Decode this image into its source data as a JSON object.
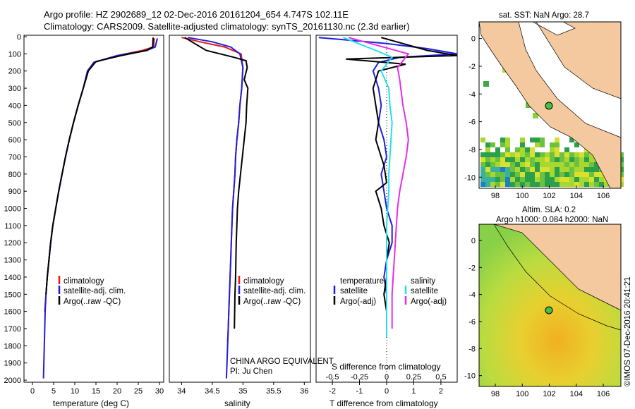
{
  "header": {
    "line1": "Argo profile: HZ 2902689_12 02-Dec-2016 20161204_654 4.747S 102.11E",
    "line2": "Climatology: CARS2009. Satellite-adjusted climatology: synTS_20161130.nc (2.3d earlier)"
  },
  "colors": {
    "climatology": "#e41a1c",
    "satellite": "#1f1fdc",
    "argo": "#000000",
    "sal_satellite": "#22e0e8",
    "sal_argo": "#e62ee6"
  },
  "panels": {
    "temp": {
      "xlabel": "temperature (deg C)",
      "xticks": [
        "0",
        "5",
        "10",
        "15",
        "20",
        "25",
        "30"
      ]
    },
    "sal": {
      "xlabel": "salinity",
      "xticks": [
        "34",
        "34.5",
        "35",
        "35.5",
        "36"
      ],
      "note1": "CHINA ARGO EQUIVALENT",
      "note2": "PI: Ju Chen"
    },
    "diff": {
      "xlabel_bottom": "T difference from climatology",
      "xlabel_top": "S difference from climatology",
      "xticks_bottom": [
        "-2",
        "-1",
        "0",
        "1",
        "2"
      ],
      "xticks_top": [
        "-0.5",
        "-0.25",
        "0",
        "0.25",
        "0.5"
      ],
      "leg_temp_title": "temperature",
      "leg_sal_title": "salinity",
      "leg_satellite": "satellite",
      "leg_argo": "Argo(-adj)"
    },
    "depth_ticks": [
      "0",
      "100",
      "200",
      "300",
      "400",
      "500",
      "600",
      "700",
      "800",
      "900",
      "1000",
      "1100",
      "1200",
      "1300",
      "1400",
      "1500",
      "1600",
      "1700",
      "1800",
      "1900",
      "2000"
    ]
  },
  "legend": {
    "climatology": "climatology",
    "satellite": "satellite-adj. clim.",
    "argo": "Argo(..raw -QC)"
  },
  "maps": {
    "sst_title": "sat. SST: NaN Argo: 28.7",
    "sla_title1": "Altim. SLA: 0.2",
    "sla_title2": "Argo h1000: 0.084 h2000: NaN",
    "lon_ticks": [
      "98",
      "100",
      "102",
      "104",
      "106"
    ],
    "lat_ticks": [
      "0",
      "-2",
      "-4",
      "-6",
      "-8",
      "-10"
    ]
  },
  "watermark": "©IMOS 07-Dec-2016 20:41:21",
  "chart_data": [
    {
      "type": "line",
      "title": "",
      "xlabel": "temperature (deg C)",
      "ylabel": "",
      "xlim": [
        -2,
        31
      ],
      "ylim": [
        2000,
        0
      ],
      "y_reversed": true,
      "series": [
        {
          "name": "climatology",
          "x": [
            28.8,
            28.6,
            26,
            20,
            14.5,
            13,
            12,
            10.8,
            9.7,
            8.7,
            7.8,
            7,
            6.2,
            5.5,
            4.8,
            4.3,
            3.9,
            3.5,
            3.2,
            2.9
          ],
          "y": [
            10,
            60,
            80,
            110,
            150,
            200,
            300,
            400,
            500,
            600,
            700,
            800,
            900,
            1000,
            1100,
            1200,
            1300,
            1400,
            1500,
            1600
          ]
        },
        {
          "name": "satellite-adj. clim.",
          "x": [
            29.5,
            29,
            27,
            20,
            14.5,
            13,
            12,
            10.8,
            9.7,
            8.7,
            7.8,
            7,
            6.2,
            5.5,
            4.8,
            4.3,
            3.9,
            3.5,
            3.2,
            3,
            2.8,
            2.6
          ],
          "y": [
            10,
            60,
            80,
            110,
            150,
            200,
            300,
            400,
            500,
            600,
            700,
            800,
            900,
            1000,
            1100,
            1200,
            1300,
            1400,
            1500,
            1600,
            1800,
            1990
          ]
        },
        {
          "name": "Argo(..raw -QC)",
          "x": [
            28.5,
            28.4,
            27,
            21,
            15,
            13.2,
            12,
            10.8,
            9.7,
            8.7,
            7.8,
            7,
            6.2,
            5.5,
            4.8,
            4.3,
            3.9,
            3.5,
            3.2
          ],
          "y": [
            5,
            60,
            80,
            110,
            145,
            200,
            300,
            400,
            500,
            600,
            700,
            800,
            900,
            1000,
            1100,
            1200,
            1300,
            1400,
            1500
          ]
        }
      ]
    },
    {
      "type": "line",
      "title": "",
      "xlabel": "salinity",
      "ylabel": "",
      "xlim": [
        33.8,
        36.1
      ],
      "ylim": [
        2000,
        0
      ],
      "y_reversed": true,
      "series": [
        {
          "name": "climatology",
          "x": [
            34.0,
            34.3,
            34.7,
            34.97,
            35.0,
            34.98,
            34.95,
            34.93,
            34.9,
            34.88,
            34.87,
            34.85,
            34.83,
            34.82,
            34.81,
            34.8,
            34.79,
            34.78,
            34.77,
            34.76,
            34.75
          ],
          "y": [
            5,
            30,
            60,
            100,
            180,
            300,
            400,
            500,
            600,
            700,
            800,
            900,
            1000,
            1100,
            1200,
            1300,
            1400,
            1500,
            1600,
            1700,
            1780
          ]
        },
        {
          "name": "satellite-adj. clim.",
          "x": [
            34.1,
            34.5,
            34.8,
            34.95,
            35.0,
            34.98,
            34.95,
            34.93,
            34.9,
            34.88,
            34.87,
            34.85,
            34.83,
            34.82,
            34.81,
            34.8,
            34.79,
            34.78,
            34.77,
            34.76,
            34.75,
            34.73
          ],
          "y": [
            5,
            30,
            60,
            100,
            180,
            300,
            400,
            500,
            600,
            700,
            800,
            900,
            1000,
            1100,
            1200,
            1300,
            1400,
            1500,
            1600,
            1700,
            1800,
            1990
          ]
        },
        {
          "name": "Argo(..raw -QC)",
          "x": [
            34.05,
            34.4,
            34.85,
            35.05,
            35.07,
            35.02,
            35.08,
            35.06,
            35.05,
            35.02,
            34.99,
            34.96,
            34.93,
            34.91,
            34.9,
            34.89,
            34.88,
            34.87,
            34.86
          ],
          "y": [
            5,
            80,
            120,
            140,
            180,
            250,
            300,
            400,
            500,
            600,
            700,
            800,
            900,
            1000,
            1100,
            1200,
            1400,
            1500,
            1700
          ]
        }
      ]
    },
    {
      "type": "line",
      "title": "",
      "xlabel": "T difference from climatology",
      "xlabel_top": "S difference from climatology",
      "xlim": [
        -2.6,
        2.6
      ],
      "xlim_top": [
        -0.65,
        0.65
      ],
      "ylim": [
        2000,
        0
      ],
      "y_reversed": true,
      "series": [
        {
          "name": "temperature satellite",
          "axis": "T",
          "x": [
            -2.5,
            0,
            1.5,
            2.6,
            0.5,
            -0.3,
            -0.5,
            -0.3,
            -0.2,
            -0.3,
            -0.1,
            0,
            -0.2,
            -0.1,
            0,
            0.2,
            0.2,
            0,
            -0.1,
            0,
            0,
            0
          ],
          "y": [
            5,
            40,
            70,
            100,
            120,
            150,
            200,
            300,
            400,
            500,
            600,
            700,
            800,
            900,
            1000,
            1100,
            1200,
            1300,
            1400,
            1500,
            1600,
            1700
          ]
        },
        {
          "name": "temperature Argo(-adj)",
          "axis": "T",
          "x": [
            -0.2,
            1.5,
            2.6,
            -1.5,
            0.7,
            -0.3,
            -0.5,
            -0.4,
            -0.3,
            -0.4,
            -0.2,
            -0.1,
            0.0,
            -0.4,
            -0.2,
            -0.1,
            0.1,
            0.0,
            0.0,
            -0.1,
            0.0,
            0.0,
            0.0
          ],
          "y": [
            5,
            80,
            110,
            130,
            160,
            200,
            300,
            400,
            500,
            600,
            700,
            750,
            850,
            900,
            1000,
            1100,
            1200,
            1300,
            1400,
            1500,
            1600,
            1700,
            1750
          ]
        },
        {
          "name": "salinity satellite",
          "axis": "S",
          "x": [
            -0.4,
            -0.1,
            0.05,
            -0.05,
            0.02,
            0.03,
            0.05,
            0.04,
            0.03,
            0.02,
            0.02,
            0.01,
            0.0,
            0.0,
            0.0,
            0.0,
            0.0,
            0.0,
            0.0
          ],
          "y": [
            5,
            80,
            120,
            200,
            300,
            400,
            500,
            600,
            700,
            800,
            900,
            1000,
            1100,
            1200,
            1300,
            1400,
            1500,
            1600,
            1750
          ]
        },
        {
          "name": "salinity Argo(-adj)",
          "axis": "S",
          "x": [
            -0.35,
            0.2,
            0.1,
            0.12,
            0.13,
            0.15,
            0.18,
            0.2,
            0.18,
            0.15,
            0.12,
            0.1,
            0.09,
            0.08,
            0.07,
            0.06,
            0.05,
            0.05,
            0.05
          ],
          "y": [
            5,
            100,
            180,
            250,
            300,
            400,
            500,
            600,
            700,
            800,
            900,
            1000,
            1100,
            1200,
            1300,
            1400,
            1500,
            1600,
            1700
          ]
        }
      ]
    }
  ]
}
